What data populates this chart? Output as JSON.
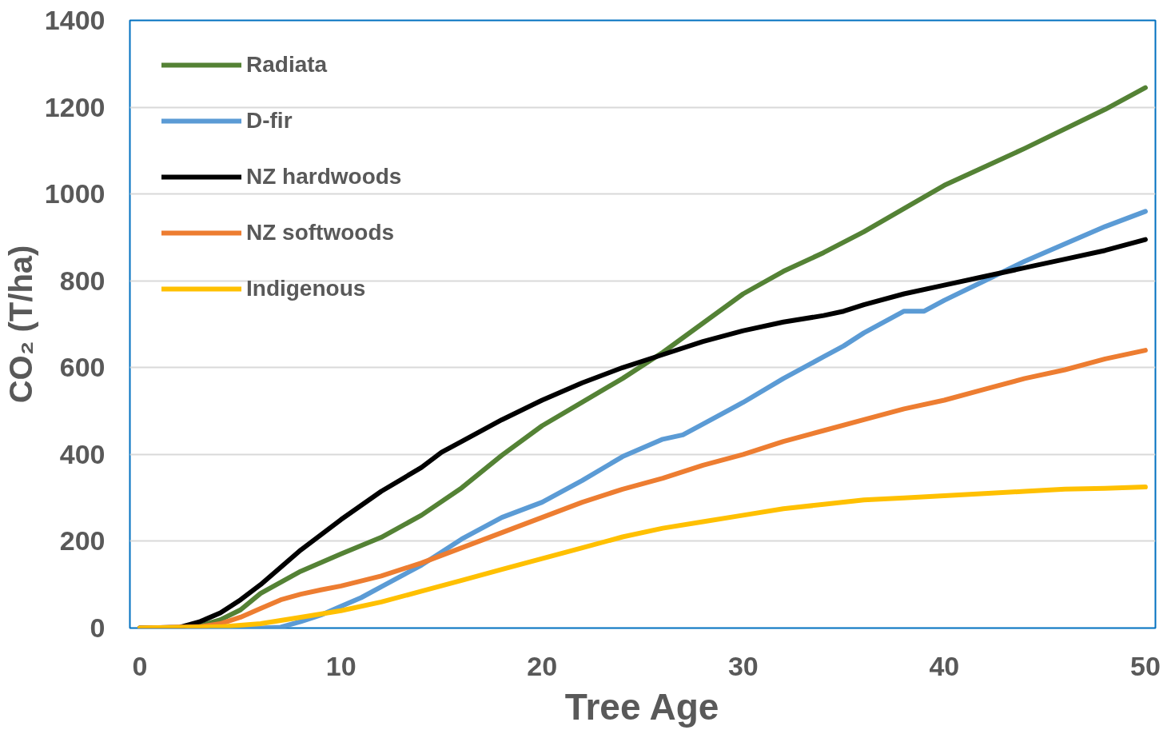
{
  "chart_data": {
    "type": "line",
    "xlabel": "Tree Age",
    "ylabel": "CO₂ (T/ha)",
    "xlim": [
      -0.5,
      50.5
    ],
    "ylim": [
      0,
      1400
    ],
    "xticks": [
      0,
      10,
      20,
      30,
      40,
      50
    ],
    "yticks": [
      0,
      200,
      400,
      600,
      800,
      1000,
      1200,
      1400
    ],
    "grid": "y",
    "legend": "top left",
    "line_style": "solid",
    "marker": "none",
    "series": [
      {
        "name": "Radiata",
        "color": "#548235",
        "x": [
          0,
          2,
          3,
          4,
          5,
          6,
          8,
          10,
          12,
          14,
          16,
          18,
          20,
          24,
          26,
          30,
          32,
          34,
          36,
          40,
          44,
          48,
          50
        ],
        "values": [
          0,
          0,
          5,
          19,
          42,
          80,
          131,
          171,
          209,
          260,
          323,
          398,
          466,
          575,
          635,
          770,
          822,
          865,
          913,
          1020,
          1105,
          1195,
          1245
        ]
      },
      {
        "name": "D-fir",
        "color": "#5b9bd5",
        "x": [
          0,
          6,
          7,
          8,
          9,
          10,
          11,
          12,
          14,
          16,
          18,
          20,
          22,
          24,
          26,
          27,
          28,
          30,
          32,
          34,
          35,
          36,
          38,
          39,
          40,
          42,
          44,
          46,
          48,
          50
        ],
        "values": [
          0,
          0,
          2,
          15,
          30,
          50,
          70,
          95,
          145,
          205,
          255,
          290,
          340,
          395,
          435,
          445,
          470,
          520,
          575,
          625,
          650,
          680,
          730,
          730,
          755,
          800,
          845,
          885,
          925,
          960
        ]
      },
      {
        "name": "NZ hardwoods",
        "color": "#000000",
        "x": [
          0,
          2,
          3,
          4,
          5,
          6,
          7,
          8,
          9,
          10,
          12,
          14,
          15,
          16,
          18,
          20,
          22,
          24,
          26,
          28,
          30,
          32,
          34,
          35,
          36,
          38,
          40,
          42,
          44,
          46,
          48,
          50
        ],
        "values": [
          0,
          2,
          15,
          35,
          65,
          100,
          140,
          180,
          215,
          250,
          315,
          370,
          405,
          430,
          480,
          525,
          565,
          600,
          630,
          660,
          685,
          705,
          720,
          730,
          745,
          770,
          790,
          810,
          830,
          850,
          870,
          895
        ]
      },
      {
        "name": "NZ softwoods",
        "color": "#ed7d31",
        "x": [
          0,
          3,
          4,
          5,
          6,
          7,
          8,
          9,
          10,
          12,
          14,
          16,
          18,
          20,
          22,
          24,
          26,
          28,
          30,
          32,
          34,
          36,
          38,
          40,
          42,
          44,
          46,
          48,
          50
        ],
        "values": [
          0,
          3,
          10,
          25,
          45,
          65,
          78,
          88,
          97,
          120,
          150,
          185,
          220,
          255,
          290,
          320,
          345,
          375,
          400,
          430,
          455,
          480,
          505,
          525,
          550,
          575,
          595,
          620,
          640
        ]
      },
      {
        "name": "Indigenous",
        "color": "#ffc000",
        "x": [
          0,
          4,
          6,
          8,
          10,
          12,
          14,
          16,
          18,
          20,
          22,
          24,
          26,
          28,
          30,
          32,
          34,
          36,
          38,
          40,
          42,
          44,
          46,
          48,
          50
        ],
        "values": [
          0,
          3,
          10,
          25,
          40,
          60,
          85,
          110,
          135,
          160,
          185,
          210,
          230,
          245,
          260,
          275,
          285,
          295,
          300,
          305,
          310,
          315,
          320,
          322,
          325
        ]
      }
    ]
  }
}
